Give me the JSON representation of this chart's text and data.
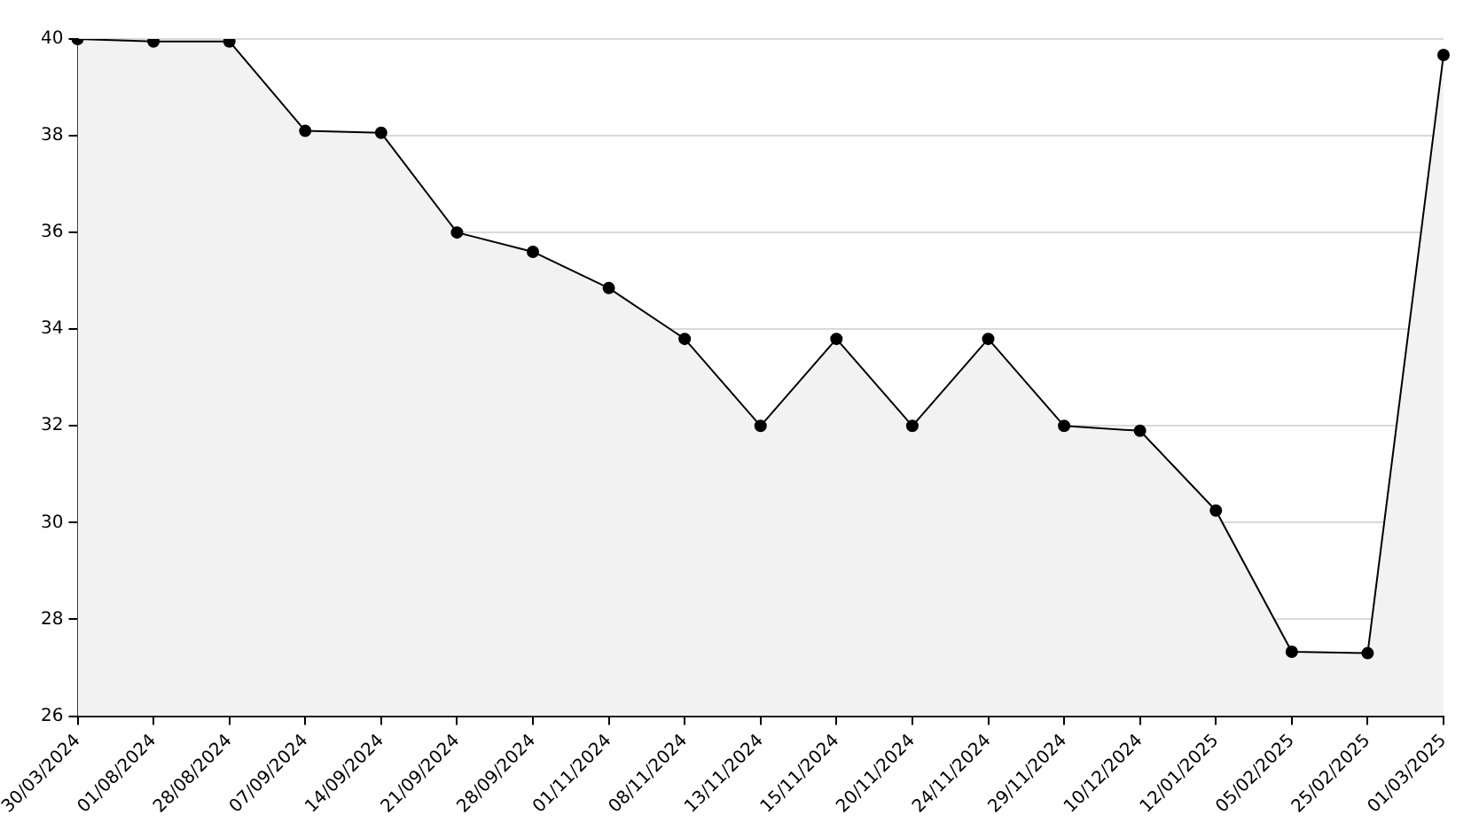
{
  "chart_data": {
    "type": "area",
    "categories": [
      "30/03/2024",
      "01/08/2024",
      "28/08/2024",
      "07/09/2024",
      "14/09/2024",
      "21/09/2024",
      "28/09/2024",
      "01/11/2024",
      "08/11/2024",
      "13/11/2024",
      "15/11/2024",
      "20/11/2024",
      "24/11/2024",
      "29/11/2024",
      "10/12/2024",
      "12/01/2025",
      "05/02/2025",
      "25/02/2025",
      "01/03/2025"
    ],
    "series": [
      {
        "color": "#000000",
        "values": [
          40,
          39.95,
          39.95,
          38.1,
          38.06,
          36,
          35.6,
          34.85,
          33.8,
          32,
          33.8,
          32,
          33.8,
          32,
          31.9,
          30.25,
          27.33,
          27.3,
          39.67
        ]
      }
    ],
    "ylim": [
      26,
      40
    ],
    "yticks": [
      26,
      28,
      30,
      32,
      34,
      36,
      38,
      40
    ],
    "grid": "y",
    "legend": false,
    "marker": "circle",
    "line_style": "solid"
  }
}
